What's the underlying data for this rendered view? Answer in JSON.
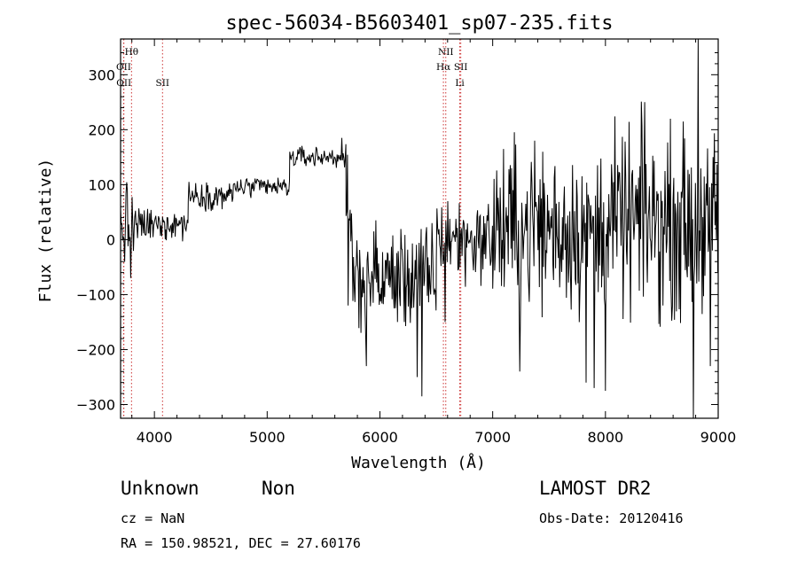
{
  "chart_data": {
    "type": "line",
    "title": "spec-56034-B5603401_sp07-235.fits",
    "xlabel": "Wavelength (Å)",
    "ylabel": "Flux (relative)",
    "xlim": [
      3700,
      9000
    ],
    "ylim": [
      -325,
      365
    ],
    "x_ticks": [
      4000,
      5000,
      6000,
      7000,
      8000,
      9000
    ],
    "y_ticks": [
      -300,
      -200,
      -100,
      0,
      100,
      200,
      300
    ],
    "grid": false,
    "line_color": "#000000",
    "marker_color": "#cc3333",
    "line_markers": [
      {
        "label": "Hθ",
        "wavelength": 3797,
        "row": 0
      },
      {
        "label": "OII",
        "wavelength": 3727,
        "row": 1
      },
      {
        "label": "OII",
        "wavelength": 3729,
        "row": 2
      },
      {
        "label": "SII",
        "wavelength": 4072,
        "row": 2
      },
      {
        "label": "NII",
        "wavelength": 6584,
        "row": 0
      },
      {
        "label": "Hα",
        "wavelength": 6563,
        "row": 1
      },
      {
        "label": "SII",
        "wavelength": 6717,
        "row": 1
      },
      {
        "label": "Li",
        "wavelength": 6708,
        "row": 2
      }
    ],
    "series": [
      {
        "segments": [
          {
            "from": 3700,
            "to": 3820,
            "base": 20,
            "noise": 55
          },
          {
            "from": 3820,
            "to": 4100,
            "base": 25,
            "noise": 25
          },
          {
            "from": 4100,
            "to": 4300,
            "base": 30,
            "noise": 22
          },
          {
            "from": 4300,
            "to": 4700,
            "base": 80,
            "noise": 18
          },
          {
            "from": 4700,
            "to": 5200,
            "base": 95,
            "noise": 14
          },
          {
            "from": 5200,
            "to": 5700,
            "base": 150,
            "noise": 14
          },
          {
            "from": 5700,
            "to": 5760,
            "base": 10,
            "noise": 90
          },
          {
            "from": 5760,
            "to": 6500,
            "base": -70,
            "noise": 70
          },
          {
            "from": 6500,
            "to": 7000,
            "base": 0,
            "noise": 55
          },
          {
            "from": 7000,
            "to": 8000,
            "base": 20,
            "noise": 110
          },
          {
            "from": 8000,
            "to": 9000,
            "base": 30,
            "noise": 120
          }
        ],
        "features": [
          {
            "x": 3760,
            "y": 90
          },
          {
            "x": 3790,
            "y": -70
          },
          {
            "x": 5660,
            "y": 185
          },
          {
            "x": 5720,
            "y": -120
          },
          {
            "x": 5880,
            "y": -230
          },
          {
            "x": 6330,
            "y": -250
          },
          {
            "x": 6370,
            "y": -285
          },
          {
            "x": 6580,
            "y": -150
          },
          {
            "x": 6600,
            "y": 70
          },
          {
            "x": 7240,
            "y": -240
          },
          {
            "x": 7370,
            "y": 180
          },
          {
            "x": 7830,
            "y": -260
          },
          {
            "x": 7900,
            "y": -270
          },
          {
            "x": 8000,
            "y": -275
          },
          {
            "x": 8350,
            "y": 250
          },
          {
            "x": 8780,
            "y": -325
          },
          {
            "x": 8820,
            "y": 365
          },
          {
            "x": 8930,
            "y": -230
          }
        ]
      }
    ]
  },
  "info": {
    "class": "Unknown",
    "subclass": "Non",
    "survey": "LAMOST DR2",
    "cz": "cz = NaN",
    "obs_date": "Obs-Date: 20120416",
    "radec": "RA = 150.98521, DEC =  27.60176"
  }
}
